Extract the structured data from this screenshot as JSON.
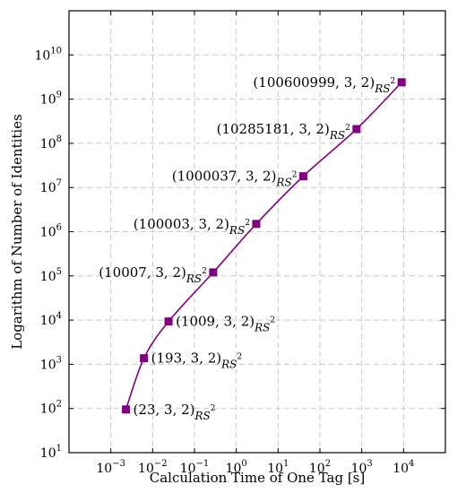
{
  "chart_data": {
    "type": "line",
    "xlabel": "Calculation Time of One Tag [s]",
    "ylabel": "Logarithm of Number of Identities",
    "x_scale": "log",
    "y_scale": "log",
    "x_range": [
      0.0001,
      100000
    ],
    "y_range": [
      10,
      100000000000
    ],
    "x_ticks": [
      {
        "base": "10",
        "exp": "−3",
        "value": 0.001
      },
      {
        "base": "10",
        "exp": "−2",
        "value": 0.01
      },
      {
        "base": "10",
        "exp": "−1",
        "value": 0.1
      },
      {
        "base": "10",
        "exp": "0",
        "value": 1
      },
      {
        "base": "10",
        "exp": "1",
        "value": 10
      },
      {
        "base": "10",
        "exp": "2",
        "value": 100
      },
      {
        "base": "10",
        "exp": "3",
        "value": 1000
      },
      {
        "base": "10",
        "exp": "4",
        "value": 10000
      }
    ],
    "y_ticks": [
      {
        "base": "10",
        "exp": "1",
        "value": 10
      },
      {
        "base": "10",
        "exp": "2",
        "value": 100
      },
      {
        "base": "10",
        "exp": "3",
        "value": 1000
      },
      {
        "base": "10",
        "exp": "4",
        "value": 10000
      },
      {
        "base": "10",
        "exp": "5",
        "value": 100000
      },
      {
        "base": "10",
        "exp": "6",
        "value": 1000000
      },
      {
        "base": "10",
        "exp": "7",
        "value": 10000000
      },
      {
        "base": "10",
        "exp": "8",
        "value": 100000000
      },
      {
        "base": "10",
        "exp": "9",
        "value": 1000000000
      },
      {
        "base": "10",
        "exp": "10",
        "value": 10000000000
      }
    ],
    "grid": true,
    "series": [
      {
        "color": "#800080",
        "marker": "square",
        "points": [
          {
            "x": 0.0023,
            "y": 95,
            "label": "(23, 3, 2)",
            "sub": "RS",
            "sup": "2",
            "anchor": "right"
          },
          {
            "x": 0.0062,
            "y": 1370,
            "label": "(193, 3, 2)",
            "sub": "RS",
            "sup": "2",
            "anchor": "right"
          },
          {
            "x": 0.024,
            "y": 9300,
            "label": "(1009, 3, 2)",
            "sub": "RS",
            "sup": "2",
            "anchor": "right"
          },
          {
            "x": 0.28,
            "y": 120000,
            "label": "(10007, 3, 2)",
            "sub": "RS",
            "sup": "2",
            "anchor": "left"
          },
          {
            "x": 3.0,
            "y": 1500000,
            "label": "(100003, 3, 2)",
            "sub": "RS",
            "sup": "2",
            "anchor": "left"
          },
          {
            "x": 40,
            "y": 18000000,
            "label": "(1000037, 3, 2)",
            "sub": "RS",
            "sup": "2",
            "anchor": "left"
          },
          {
            "x": 750,
            "y": 210000000,
            "label": "(10285181, 3, 2)",
            "sub": "RS",
            "sup": "2",
            "anchor": "left"
          },
          {
            "x": 9000,
            "y": 2400000000,
            "label": "(100600999, 3, 2)",
            "sub": "RS",
            "sup": "2",
            "anchor": "left"
          }
        ]
      }
    ]
  }
}
